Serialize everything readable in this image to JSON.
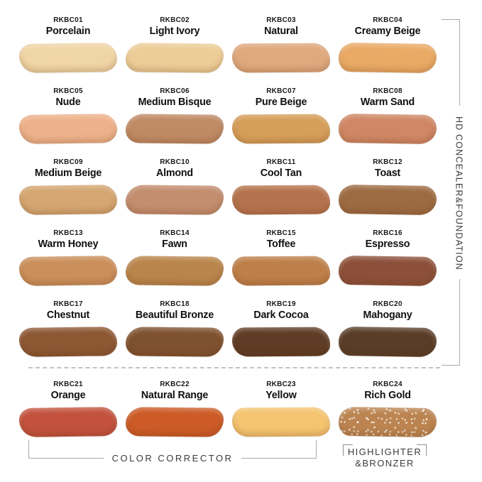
{
  "sections": {
    "hd_concealer_foundation": {
      "label": "HD CONCEALER&FOUNDATION"
    },
    "color_corrector": {
      "label": "COLOR CORRECTOR"
    },
    "highlighter_bronzer": {
      "label_line1": "HIGHLIGHTER",
      "label_line2": "&BRONZER"
    }
  },
  "ui_colors": {
    "background": "#ffffff",
    "bracket_line": "#a9a9a9",
    "divider_dash": "#c3c3c3",
    "label_text": "#3c3c3c",
    "swatch_text": "#111111"
  },
  "swatches": {
    "hd_concealer_foundation": [
      {
        "code": "RKBC01",
        "name": "Porcelain",
        "color": "#F0D5A6"
      },
      {
        "code": "RKBC02",
        "name": "Light Ivory",
        "color": "#EDCD97"
      },
      {
        "code": "RKBC03",
        "name": "Natural",
        "color": "#DFA87D"
      },
      {
        "code": "RKBC04",
        "name": "Creamy Beige",
        "color": "#EAAA66"
      },
      {
        "code": "RKBC05",
        "name": "Nude",
        "color": "#EDB28A"
      },
      {
        "code": "RKBC06",
        "name": "Medium Bisque",
        "color": "#BF8A64"
      },
      {
        "code": "RKBC07",
        "name": "Pure Beige",
        "color": "#D59E59"
      },
      {
        "code": "RKBC08",
        "name": "Warm Sand",
        "color": "#CF8764"
      },
      {
        "code": "RKBC09",
        "name": "Medium Beige",
        "color": "#D4A671"
      },
      {
        "code": "RKBC10",
        "name": "Almond",
        "color": "#C38D6E"
      },
      {
        "code": "RKBC11",
        "name": "Cool Tan",
        "color": "#B5734D"
      },
      {
        "code": "RKBC12",
        "name": "Toast",
        "color": "#9C6B42"
      },
      {
        "code": "RKBC13",
        "name": "Warm Honey",
        "color": "#CA8F5A"
      },
      {
        "code": "RKBC14",
        "name": "Fawn",
        "color": "#B9854B"
      },
      {
        "code": "RKBC15",
        "name": "Toffee",
        "color": "#BE7F49"
      },
      {
        "code": "RKBC16",
        "name": "Espresso",
        "color": "#8C503A"
      },
      {
        "code": "RKBC17",
        "name": "Chestnut",
        "color": "#8C5733"
      },
      {
        "code": "RKBC18",
        "name": "Beautiful Bronze",
        "color": "#7F522F"
      },
      {
        "code": "RKBC19",
        "name": "Dark Cocoa",
        "color": "#5E3C25"
      },
      {
        "code": "RKBC20",
        "name": "Mahogany",
        "color": "#593D28"
      }
    ],
    "bottom_row": [
      {
        "code": "RKBC21",
        "name": "Orange",
        "color": "#C2523D",
        "section": "color_corrector"
      },
      {
        "code": "RKBC22",
        "name": "Natural Range",
        "color": "#CC5B27",
        "section": "color_corrector"
      },
      {
        "code": "RKBC23",
        "name": "Yellow",
        "color": "#F4C470",
        "section": "color_corrector"
      },
      {
        "code": "RKBC24",
        "name": "Rich Gold",
        "color": "#BB8450",
        "section": "highlighter_bronzer",
        "shimmer": true
      }
    ]
  }
}
